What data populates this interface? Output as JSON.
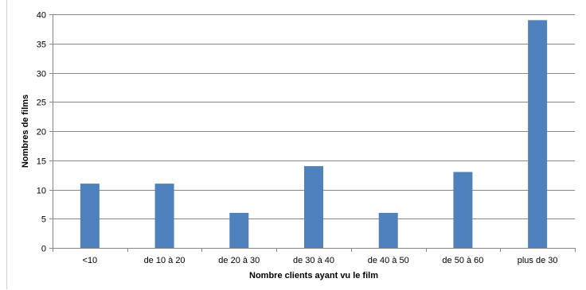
{
  "chart_data": {
    "type": "bar",
    "categories": [
      "<10",
      "de 10  à 20",
      "de 20 à 30",
      "de 30  à 40",
      "de 40 à 50",
      "de 50 à 60",
      "plus de 30"
    ],
    "values": [
      11,
      11,
      6,
      14,
      6,
      13,
      39
    ],
    "title": "",
    "xlabel": "Nombre clients ayant vu le film",
    "ylabel": "Nombres de films",
    "ylim": [
      0,
      40
    ],
    "yticks": [
      0,
      5,
      10,
      15,
      20,
      25,
      30,
      35,
      40
    ],
    "grid": true,
    "legend": "none",
    "colors": {
      "bar": "#4f81bd",
      "grid": "#878787",
      "axis": "#878787"
    }
  }
}
